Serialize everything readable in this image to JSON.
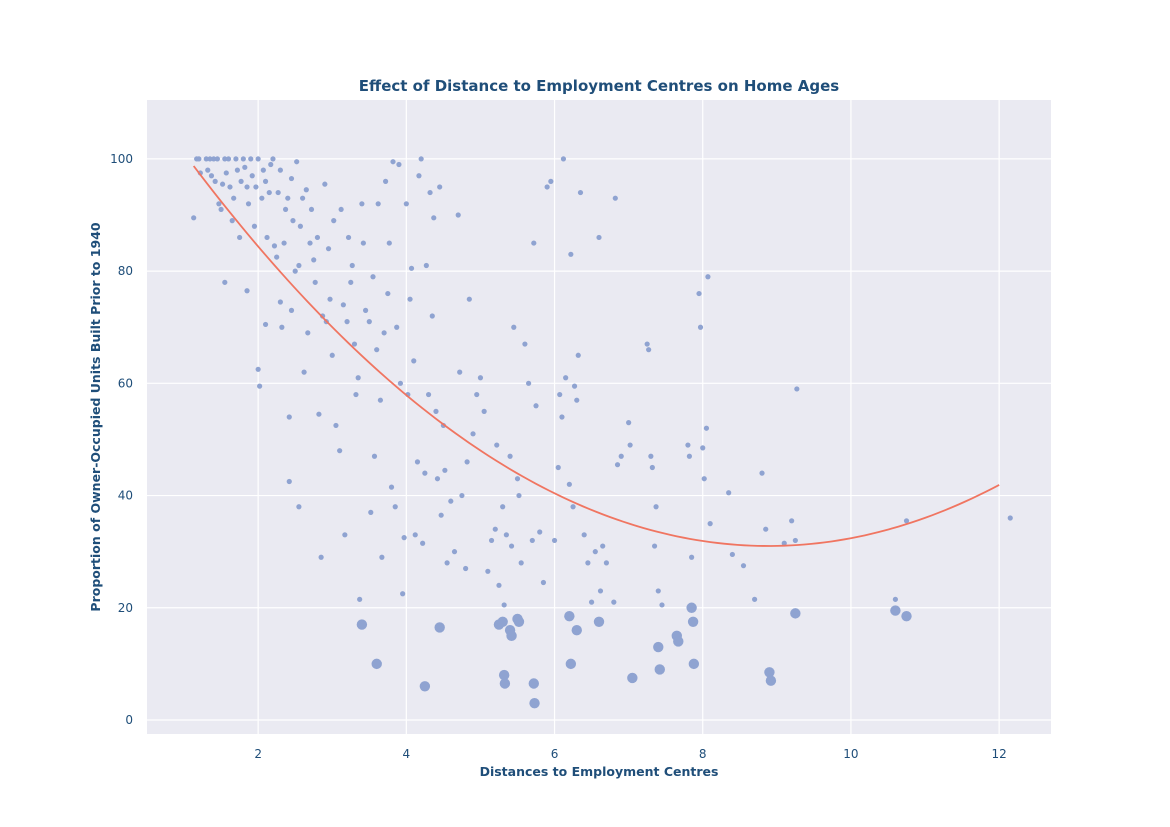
{
  "chart_data": {
    "type": "scatter",
    "title": "Effect of Distance to Employment Centres on Home Ages",
    "xlabel": "Distances to Employment Centres",
    "ylabel": "Proportion of Owner-Occupied Units Built Prior to 1940",
    "xlim": [
      0.5,
      12.7
    ],
    "ylim": [
      -2.5,
      110.5
    ],
    "xticks": [
      2,
      4,
      6,
      8,
      10,
      12
    ],
    "yticks": [
      0,
      20,
      40,
      60,
      80,
      100
    ],
    "grid": true,
    "legend": "none",
    "colors": {
      "background": "#eaeaf2",
      "grid": "#ffffff",
      "points": "#8fa3d1",
      "trend": "#f07561",
      "text": "#1f4e79"
    },
    "trend_line": {
      "type": "quadratic",
      "coefficients": [
        1.125,
        -20.0,
        119.9
      ],
      "x_range": [
        1.13,
        12.0
      ]
    },
    "series": [
      {
        "marker_size": "small",
        "points": [
          [
            1.13,
            89.5
          ],
          [
            1.17,
            100
          ],
          [
            1.2,
            100
          ],
          [
            1.22,
            97.5
          ],
          [
            1.3,
            100
          ],
          [
            1.32,
            98
          ],
          [
            1.35,
            100
          ],
          [
            1.37,
            97
          ],
          [
            1.4,
            100
          ],
          [
            1.42,
            96
          ],
          [
            1.45,
            100
          ],
          [
            1.47,
            92
          ],
          [
            1.5,
            91
          ],
          [
            1.52,
            95.5
          ],
          [
            1.55,
            78
          ],
          [
            1.55,
            100
          ],
          [
            1.57,
            97.5
          ],
          [
            1.6,
            100
          ],
          [
            1.62,
            95
          ],
          [
            1.65,
            89
          ],
          [
            1.67,
            93
          ],
          [
            1.7,
            100
          ],
          [
            1.72,
            98
          ],
          [
            1.75,
            86
          ],
          [
            1.77,
            96
          ],
          [
            1.8,
            100
          ],
          [
            1.82,
            98.5
          ],
          [
            1.85,
            76.5
          ],
          [
            1.85,
            95
          ],
          [
            1.87,
            92
          ],
          [
            1.9,
            100
          ],
          [
            1.92,
            97
          ],
          [
            1.95,
            88
          ],
          [
            1.97,
            95
          ],
          [
            2.0,
            100
          ],
          [
            2.0,
            62.5
          ],
          [
            2.02,
            59.5
          ],
          [
            2.05,
            93
          ],
          [
            2.07,
            98
          ],
          [
            2.1,
            96
          ],
          [
            2.1,
            70.5
          ],
          [
            2.12,
            86
          ],
          [
            2.15,
            94
          ],
          [
            2.17,
            99
          ],
          [
            2.2,
            100
          ],
          [
            2.22,
            84.5
          ],
          [
            2.25,
            82.5
          ],
          [
            2.27,
            94
          ],
          [
            2.3,
            74.5
          ],
          [
            2.3,
            98
          ],
          [
            2.32,
            70
          ],
          [
            2.35,
            85
          ],
          [
            2.37,
            91
          ],
          [
            2.4,
            93
          ],
          [
            2.42,
            54
          ],
          [
            2.42,
            42.5
          ],
          [
            2.45,
            73
          ],
          [
            2.45,
            96.5
          ],
          [
            2.47,
            89
          ],
          [
            2.5,
            80
          ],
          [
            2.52,
            99.5
          ],
          [
            2.55,
            38
          ],
          [
            2.55,
            81
          ],
          [
            2.57,
            88
          ],
          [
            2.6,
            93
          ],
          [
            2.62,
            62
          ],
          [
            2.65,
            94.5
          ],
          [
            2.67,
            69
          ],
          [
            2.7,
            85
          ],
          [
            2.72,
            91
          ],
          [
            2.75,
            82
          ],
          [
            2.77,
            78
          ],
          [
            2.8,
            86
          ],
          [
            2.82,
            54.5
          ],
          [
            2.85,
            29
          ],
          [
            2.87,
            72
          ],
          [
            2.9,
            95.5
          ],
          [
            2.92,
            71
          ],
          [
            2.95,
            84
          ],
          [
            2.97,
            75
          ],
          [
            3.0,
            65
          ],
          [
            3.02,
            89
          ],
          [
            3.05,
            52.5
          ],
          [
            3.1,
            48
          ],
          [
            3.12,
            91
          ],
          [
            3.15,
            74
          ],
          [
            3.17,
            33
          ],
          [
            3.2,
            71
          ],
          [
            3.22,
            86
          ],
          [
            3.25,
            78
          ],
          [
            3.27,
            81
          ],
          [
            3.3,
            67
          ],
          [
            3.32,
            58
          ],
          [
            3.35,
            61
          ],
          [
            3.37,
            21.5
          ],
          [
            3.4,
            92
          ],
          [
            3.42,
            85
          ],
          [
            3.45,
            73
          ],
          [
            3.5,
            71
          ],
          [
            3.52,
            37
          ],
          [
            3.55,
            79
          ],
          [
            3.57,
            47
          ],
          [
            3.6,
            66
          ],
          [
            3.62,
            92
          ],
          [
            3.65,
            57
          ],
          [
            3.67,
            29
          ],
          [
            3.7,
            69
          ],
          [
            3.72,
            96
          ],
          [
            3.75,
            76
          ],
          [
            3.77,
            85
          ],
          [
            3.8,
            41.5
          ],
          [
            3.82,
            99.5
          ],
          [
            3.85,
            38
          ],
          [
            3.87,
            70
          ],
          [
            3.9,
            99
          ],
          [
            3.92,
            60
          ],
          [
            3.95,
            22.5
          ],
          [
            3.97,
            32.5
          ],
          [
            4.0,
            92
          ],
          [
            4.02,
            58
          ],
          [
            4.05,
            75
          ],
          [
            4.07,
            80.5
          ],
          [
            4.1,
            64
          ],
          [
            4.12,
            33
          ],
          [
            4.15,
            46
          ],
          [
            4.17,
            97
          ],
          [
            4.2,
            100
          ],
          [
            4.22,
            31.5
          ],
          [
            4.25,
            44
          ],
          [
            4.27,
            81
          ],
          [
            4.3,
            58
          ],
          [
            4.32,
            94
          ],
          [
            4.35,
            72
          ],
          [
            4.37,
            89.5
          ],
          [
            4.4,
            55
          ],
          [
            4.42,
            43
          ],
          [
            4.45,
            95
          ],
          [
            4.47,
            36.5
          ],
          [
            4.5,
            52.5
          ],
          [
            4.52,
            44.5
          ],
          [
            4.55,
            28
          ],
          [
            4.6,
            39
          ],
          [
            4.65,
            30
          ],
          [
            4.7,
            90
          ],
          [
            4.72,
            62
          ],
          [
            4.75,
            40
          ],
          [
            4.8,
            27
          ],
          [
            4.82,
            46
          ],
          [
            4.85,
            75
          ],
          [
            4.9,
            51
          ],
          [
            4.95,
            58
          ],
          [
            5.0,
            61
          ],
          [
            5.05,
            55
          ],
          [
            5.1,
            26.5
          ],
          [
            5.15,
            32
          ],
          [
            5.2,
            34
          ],
          [
            5.22,
            49
          ],
          [
            5.25,
            24
          ],
          [
            5.3,
            38
          ],
          [
            5.32,
            20.5
          ],
          [
            5.35,
            33
          ],
          [
            5.4,
            47
          ],
          [
            5.42,
            31
          ],
          [
            5.45,
            70
          ],
          [
            5.5,
            43
          ],
          [
            5.52,
            40
          ],
          [
            5.55,
            28
          ],
          [
            5.6,
            67
          ],
          [
            5.65,
            60
          ],
          [
            5.7,
            32
          ],
          [
            5.72,
            85
          ],
          [
            5.75,
            56
          ],
          [
            5.8,
            33.5
          ],
          [
            5.85,
            24.5
          ],
          [
            5.9,
            95
          ],
          [
            5.95,
            96
          ],
          [
            6.0,
            32
          ],
          [
            6.05,
            45
          ],
          [
            6.07,
            58
          ],
          [
            6.1,
            54
          ],
          [
            6.12,
            100
          ],
          [
            6.15,
            61
          ],
          [
            6.2,
            42
          ],
          [
            6.22,
            83
          ],
          [
            6.25,
            38
          ],
          [
            6.27,
            59.5
          ],
          [
            6.3,
            57
          ],
          [
            6.32,
            65
          ],
          [
            6.35,
            94
          ],
          [
            6.4,
            33
          ],
          [
            6.45,
            28
          ],
          [
            6.5,
            21
          ],
          [
            6.55,
            30
          ],
          [
            6.6,
            86
          ],
          [
            6.62,
            23
          ],
          [
            6.65,
            31
          ],
          [
            6.7,
            28
          ],
          [
            6.8,
            21
          ],
          [
            6.82,
            93
          ],
          [
            6.85,
            45.5
          ],
          [
            6.9,
            47
          ],
          [
            7.0,
            53
          ],
          [
            7.02,
            49
          ],
          [
            7.25,
            67
          ],
          [
            7.27,
            66
          ],
          [
            7.3,
            47
          ],
          [
            7.32,
            45
          ],
          [
            7.35,
            31
          ],
          [
            7.37,
            38
          ],
          [
            7.4,
            23
          ],
          [
            7.45,
            20.5
          ],
          [
            7.8,
            49
          ],
          [
            7.82,
            47
          ],
          [
            7.85,
            29
          ],
          [
            7.95,
            76
          ],
          [
            7.97,
            70
          ],
          [
            8.0,
            48.5
          ],
          [
            8.02,
            43
          ],
          [
            8.05,
            52
          ],
          [
            8.07,
            79
          ],
          [
            8.1,
            35
          ],
          [
            8.35,
            40.5
          ],
          [
            8.4,
            29.5
          ],
          [
            8.55,
            27.5
          ],
          [
            8.7,
            21.5
          ],
          [
            8.8,
            44
          ],
          [
            8.85,
            34
          ],
          [
            9.1,
            31.5
          ],
          [
            9.2,
            35.5
          ],
          [
            9.25,
            32
          ],
          [
            9.27,
            59
          ],
          [
            10.6,
            21.5
          ],
          [
            10.75,
            35.5
          ],
          [
            12.15,
            36
          ]
        ]
      },
      {
        "marker_size": "large",
        "points": [
          [
            3.4,
            17
          ],
          [
            3.6,
            10
          ],
          [
            4.25,
            6
          ],
          [
            4.45,
            16.5
          ],
          [
            5.25,
            17
          ],
          [
            5.3,
            17.5
          ],
          [
            5.32,
            8
          ],
          [
            5.33,
            6.5
          ],
          [
            5.4,
            16
          ],
          [
            5.42,
            15
          ],
          [
            5.5,
            18
          ],
          [
            5.52,
            17.5
          ],
          [
            5.72,
            6.5
          ],
          [
            5.73,
            3
          ],
          [
            6.2,
            18.5
          ],
          [
            6.22,
            10
          ],
          [
            6.3,
            16
          ],
          [
            6.6,
            17.5
          ],
          [
            7.05,
            7.5
          ],
          [
            7.4,
            13
          ],
          [
            7.42,
            9
          ],
          [
            7.65,
            15
          ],
          [
            7.67,
            14
          ],
          [
            7.85,
            20
          ],
          [
            7.87,
            17.5
          ],
          [
            7.88,
            10
          ],
          [
            8.9,
            8.5
          ],
          [
            8.92,
            7
          ],
          [
            9.25,
            19
          ],
          [
            10.6,
            19.5
          ],
          [
            10.75,
            18.5
          ]
        ]
      }
    ]
  }
}
